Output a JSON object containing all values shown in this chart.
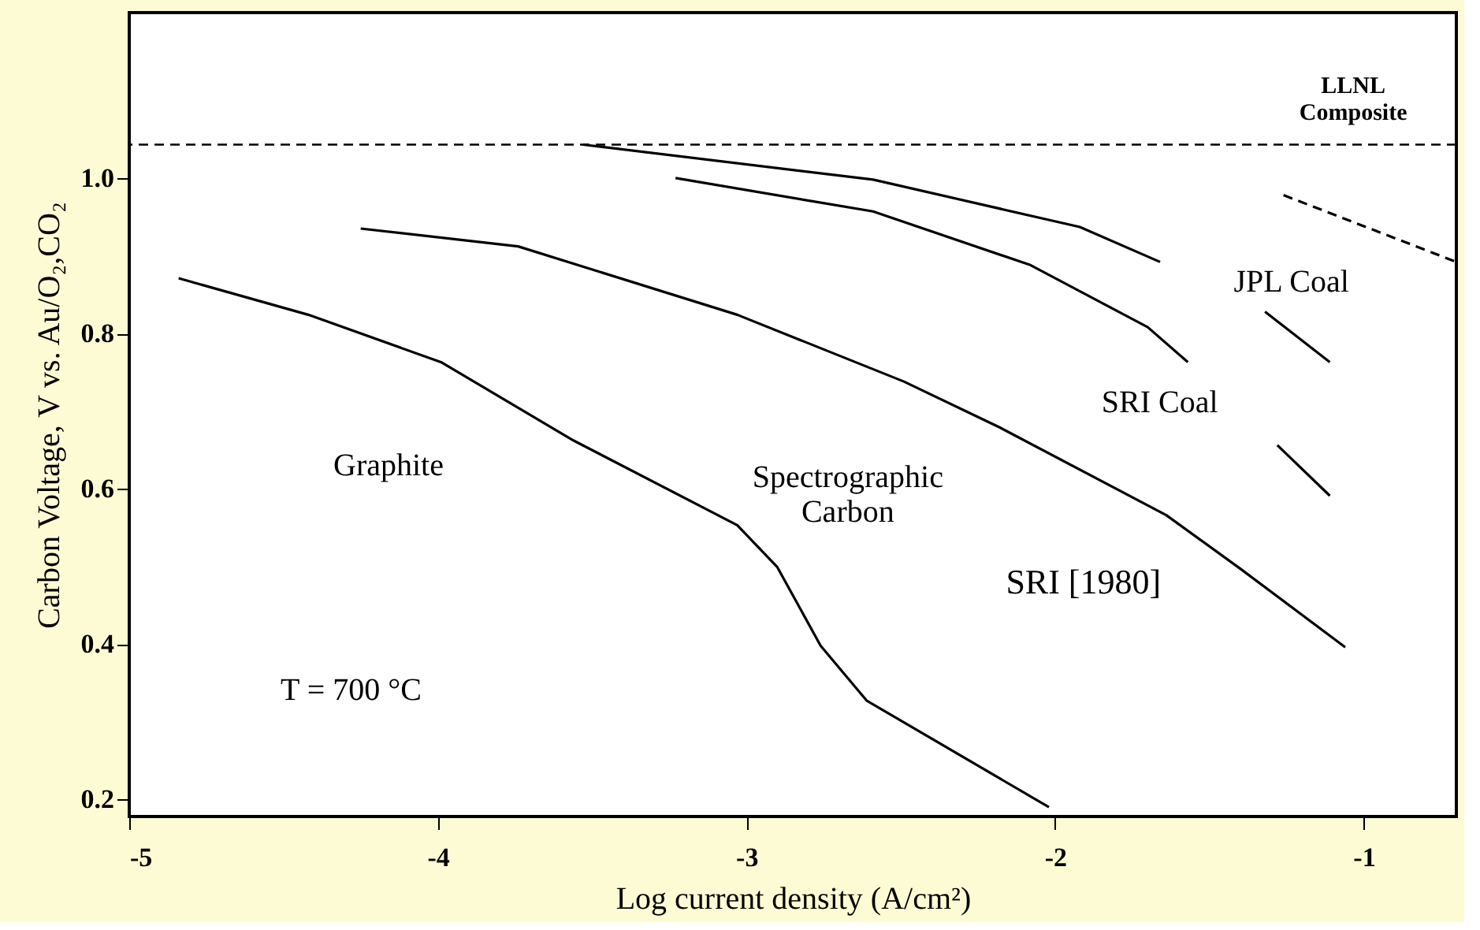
{
  "chart_data": {
    "type": "line",
    "xlabel": "Log current density (A/cm²)",
    "ylabel": "Carbon Voltage, V vs. Au/O₂,CO₂",
    "series": [
      {
        "color": "#000000",
        "x": [
          -4.84,
          -4.42,
          -3.99,
          -3.56,
          -3.03,
          -2.9,
          -2.76,
          -2.61,
          -2.02
        ],
        "values": [
          0.871,
          0.824,
          0.763,
          0.662,
          0.553,
          0.499,
          0.398,
          0.327,
          0.19
        ]
      },
      {
        "color": "#000000",
        "x": [
          -4.25,
          -3.74,
          -3.03,
          -2.49,
          -2.18,
          -1.64,
          -1.4,
          -1.06
        ],
        "values": [
          0.935,
          0.912,
          0.824,
          0.738,
          0.679,
          0.566,
          0.497,
          0.396
        ]
      },
      {
        "color": "#000000",
        "x": [
          -3.53,
          -2.59,
          -1.92,
          -1.66
        ],
        "values": [
          1.043,
          0.998,
          0.937,
          0.892
        ]
      },
      {
        "color": "#000000",
        "x": [
          -1.32,
          -1.11
        ],
        "values": [
          0.828,
          0.763
        ]
      },
      {
        "color": "#000000",
        "x": [
          -3.23,
          -2.59,
          -2.08,
          -1.7,
          -1.57
        ],
        "values": [
          1.0,
          0.957,
          0.888,
          0.808,
          0.763
        ]
      },
      {
        "color": "#000000",
        "x": [
          -1.28,
          -1.11
        ],
        "values": [
          0.656,
          0.591
        ]
      },
      {
        "color": "#000000",
        "line_style": "dashed",
        "x": [
          -1.26,
          -0.7
        ],
        "values": [
          0.978,
          0.892
        ]
      }
    ],
    "ref_lines": [
      {
        "axis": "y",
        "value": 1.043,
        "color": "#000000",
        "line_style": "dashed"
      }
    ],
    "annotations": [
      "Graphite",
      "Spectrographic\nCarbon",
      "SRI Coal",
      "JPL Coal",
      "LLNL\nComposite",
      "T = 700 °C",
      "SRI [1980]"
    ],
    "xlim": [
      -5,
      -0.7
    ],
    "xticks": [
      -5,
      -4,
      -3,
      -2,
      -1
    ],
    "ylim": [
      0.178,
      1.213
    ],
    "yticks": [
      0.2,
      0.4,
      0.6,
      0.8,
      {
        "value": 1.0,
        "label": "1.0"
      }
    ],
    "grid": false
  }
}
